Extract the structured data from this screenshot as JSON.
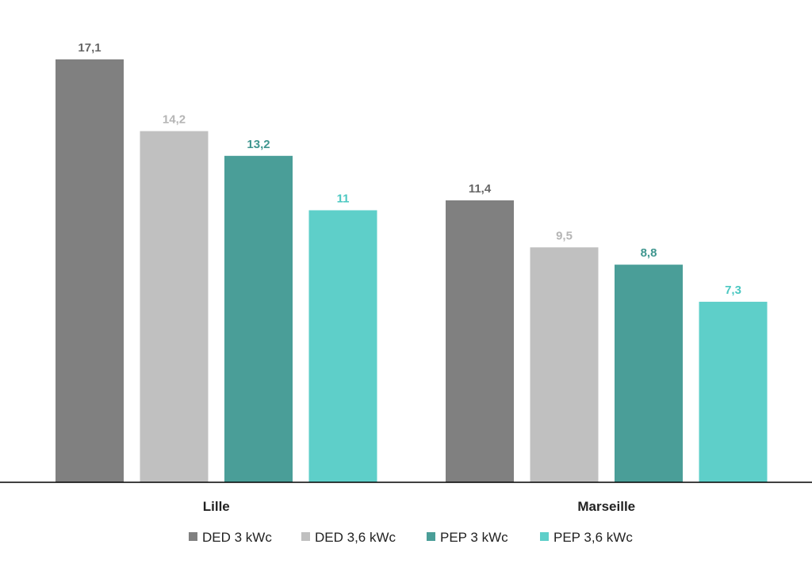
{
  "chart_data": {
    "type": "bar",
    "categories": [
      "Lille",
      "Marseille"
    ],
    "series": [
      {
        "name": "DED 3 kWc",
        "color": "#808080",
        "values": [
          17.1,
          11.4
        ],
        "labels": [
          "17,1",
          "11,4"
        ],
        "label_color": "#666666"
      },
      {
        "name": "DED 3,6 kWc",
        "color": "#c0c0c0",
        "values": [
          14.2,
          9.5
        ],
        "labels": [
          "14,2",
          "9,5"
        ],
        "label_color": "#b5b5b5"
      },
      {
        "name": "PEP 3 kWc",
        "color": "#4a9e98",
        "values": [
          13.2,
          8.8
        ],
        "labels": [
          "13,2",
          "8,8"
        ],
        "label_color": "#3f968f"
      },
      {
        "name": "PEP 3,6 kWc",
        "color": "#5ecfc9",
        "values": [
          11,
          7.3
        ],
        "labels": [
          "11",
          "7,3"
        ],
        "label_color": "#4cc8c2"
      }
    ],
    "ylim": [
      0,
      17.1
    ],
    "grid": false,
    "legend_position": "bottom",
    "title": "",
    "xlabel": "",
    "ylabel": ""
  }
}
